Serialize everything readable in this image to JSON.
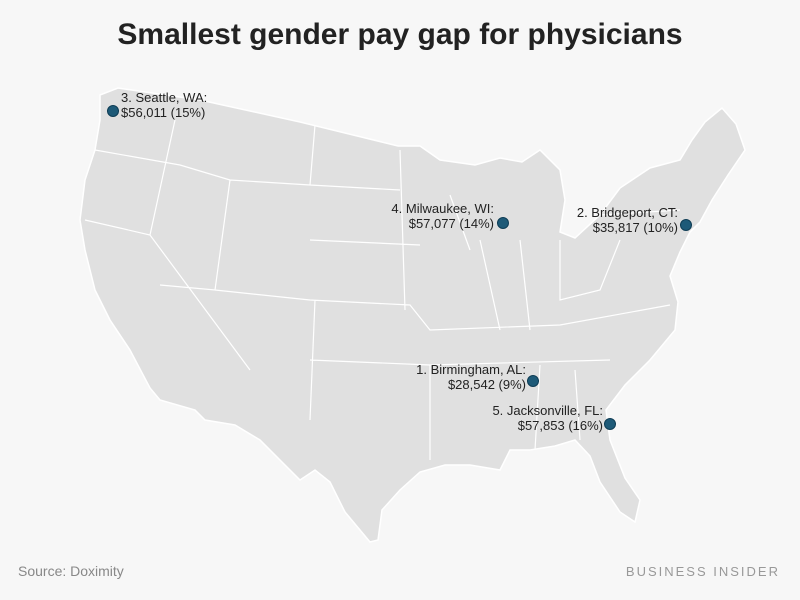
{
  "title": "Smallest gender pay gap for physicians",
  "colors": {
    "dot": "#1e5a78",
    "land": "#e0e0e0",
    "border": "#ffffff",
    "background": "#f7f7f7"
  },
  "cities": [
    {
      "rank_label": "3. Seattle, WA:",
      "value_label": "$56,011 (15%)"
    },
    {
      "rank_label": "4. Milwaukee, WI:",
      "value_label": "$57,077 (14%)"
    },
    {
      "rank_label": "2. Bridgeport, CT:",
      "value_label": "$35,817 (10%)"
    },
    {
      "rank_label": "1. Birmingham, AL:",
      "value_label": "$28,542 (9%)"
    },
    {
      "rank_label": "5. Jacksonville, FL:",
      "value_label": "$57,853 (16%)"
    }
  ],
  "source": "Source: Doximity",
  "brand": "BUSINESS INSIDER"
}
